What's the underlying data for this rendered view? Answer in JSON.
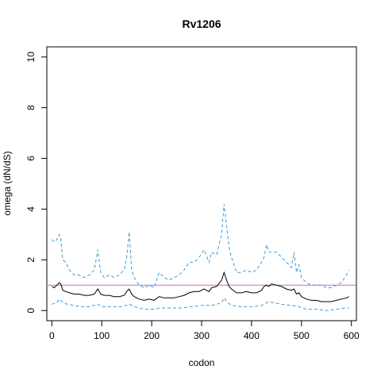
{
  "chart_data": {
    "type": "line",
    "title": "Rv1206",
    "xlabel": "codon",
    "ylabel": "omega (dN/dS)",
    "xlim": [
      -10,
      610
    ],
    "ylim": [
      -0.4,
      10.4
    ],
    "xticks": [
      0,
      100,
      200,
      300,
      400,
      500,
      600
    ],
    "yticks": [
      0,
      2,
      4,
      6,
      8,
      10
    ],
    "reference_line": {
      "y": 1.0,
      "color": "#c86fc8"
    },
    "grid": false,
    "legend": "none",
    "series": [
      {
        "role": "upper",
        "style": "dashed",
        "color": "#3a9ad9",
        "x": [
          0,
          5,
          10,
          15,
          18,
          22,
          28,
          35,
          45,
          55,
          65,
          75,
          85,
          92,
          98,
          105,
          115,
          125,
          135,
          145,
          150,
          155,
          160,
          165,
          175,
          185,
          195,
          205,
          215,
          225,
          235,
          245,
          255,
          265,
          275,
          285,
          295,
          305,
          315,
          320,
          330,
          340,
          345,
          350,
          355,
          360,
          370,
          380,
          390,
          400,
          410,
          420,
          425,
          430,
          435,
          440,
          450,
          460,
          470,
          480,
          485,
          490,
          495,
          500,
          510,
          520,
          530,
          540,
          550,
          560,
          570,
          580,
          590,
          595
        ],
        "y": [
          2.8,
          2.7,
          2.8,
          3.0,
          2.8,
          2.0,
          1.9,
          1.6,
          1.4,
          1.4,
          1.3,
          1.4,
          1.6,
          2.4,
          1.5,
          1.3,
          1.4,
          1.3,
          1.4,
          1.6,
          2.1,
          3.1,
          1.6,
          1.3,
          1.0,
          0.9,
          1.0,
          0.9,
          1.5,
          1.3,
          1.2,
          1.3,
          1.4,
          1.6,
          1.9,
          1.9,
          2.1,
          2.4,
          1.9,
          2.3,
          2.2,
          3.0,
          4.2,
          3.3,
          2.5,
          2.1,
          1.5,
          1.5,
          1.6,
          1.5,
          1.6,
          1.9,
          2.1,
          2.6,
          2.3,
          2.3,
          2.3,
          2.1,
          1.9,
          1.7,
          2.3,
          1.5,
          1.8,
          1.3,
          1.1,
          1.0,
          1.0,
          1.0,
          0.9,
          0.9,
          1.0,
          1.1,
          1.4,
          1.6
        ]
      },
      {
        "role": "mean",
        "style": "solid",
        "color": "#000000",
        "x": [
          0,
          5,
          10,
          15,
          18,
          22,
          28,
          35,
          45,
          55,
          65,
          75,
          85,
          92,
          98,
          105,
          115,
          125,
          135,
          145,
          150,
          155,
          160,
          165,
          175,
          185,
          195,
          205,
          215,
          225,
          235,
          245,
          255,
          265,
          275,
          285,
          295,
          305,
          315,
          320,
          330,
          340,
          345,
          350,
          355,
          360,
          370,
          380,
          390,
          400,
          410,
          420,
          425,
          430,
          435,
          440,
          450,
          460,
          470,
          480,
          485,
          490,
          495,
          500,
          510,
          520,
          530,
          540,
          550,
          560,
          570,
          580,
          590,
          595
        ],
        "y": [
          0.95,
          0.9,
          1.0,
          1.1,
          1.05,
          0.8,
          0.75,
          0.7,
          0.65,
          0.65,
          0.6,
          0.6,
          0.65,
          0.85,
          0.65,
          0.6,
          0.6,
          0.55,
          0.55,
          0.6,
          0.75,
          0.85,
          0.65,
          0.55,
          0.45,
          0.4,
          0.45,
          0.4,
          0.55,
          0.5,
          0.5,
          0.5,
          0.55,
          0.6,
          0.7,
          0.75,
          0.75,
          0.85,
          0.75,
          0.9,
          0.95,
          1.2,
          1.5,
          1.2,
          0.95,
          0.85,
          0.7,
          0.7,
          0.75,
          0.7,
          0.7,
          0.8,
          0.95,
          1.0,
          0.95,
          1.05,
          1.0,
          0.95,
          0.85,
          0.8,
          0.85,
          0.65,
          0.7,
          0.55,
          0.45,
          0.4,
          0.4,
          0.35,
          0.35,
          0.35,
          0.4,
          0.45,
          0.5,
          0.55
        ]
      },
      {
        "role": "lower",
        "style": "dashed",
        "color": "#3a9ad9",
        "x": [
          0,
          10,
          15,
          20,
          30,
          45,
          60,
          75,
          92,
          100,
          120,
          140,
          155,
          165,
          185,
          200,
          220,
          240,
          260,
          280,
          300,
          320,
          340,
          345,
          350,
          360,
          380,
          400,
          420,
          435,
          445,
          460,
          480,
          495,
          510,
          530,
          550,
          570,
          590,
          595
        ],
        "y": [
          0.25,
          0.3,
          0.45,
          0.35,
          0.25,
          0.2,
          0.15,
          0.15,
          0.25,
          0.15,
          0.15,
          0.15,
          0.25,
          0.15,
          0.05,
          0.05,
          0.1,
          0.1,
          0.1,
          0.15,
          0.2,
          0.2,
          0.3,
          0.5,
          0.35,
          0.2,
          0.15,
          0.15,
          0.2,
          0.35,
          0.3,
          0.25,
          0.2,
          0.15,
          0.05,
          0.05,
          0.0,
          0.05,
          0.1,
          0.1
        ]
      }
    ]
  }
}
